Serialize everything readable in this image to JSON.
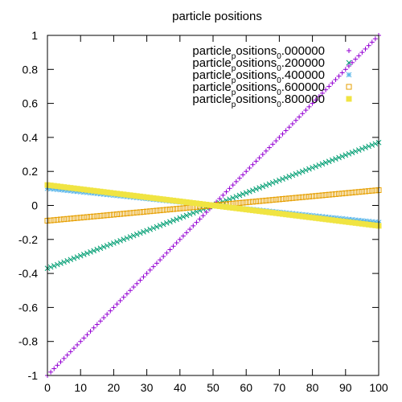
{
  "chart_data": {
    "type": "scatter",
    "title": "particle positions",
    "xlabel": "",
    "ylabel": "",
    "xlim": [
      0,
      100
    ],
    "ylim": [
      -1,
      1
    ],
    "xticks": [
      0,
      10,
      20,
      30,
      40,
      50,
      60,
      70,
      80,
      90,
      100
    ],
    "yticks": [
      -1,
      -0.8,
      -0.6,
      -0.4,
      -0.2,
      0,
      0.2,
      0.4,
      0.6,
      0.8,
      1
    ],
    "xtick_labels": [
      "0",
      "10",
      "20",
      "30",
      "40",
      "50",
      "60",
      "70",
      "80",
      "90",
      "100"
    ],
    "ytick_labels": [
      "-1",
      "-0.8",
      "-0.6",
      "-0.4",
      "-0.2",
      "0",
      "0.2",
      "0.4",
      "0.6",
      "0.8",
      "1"
    ],
    "grid": false,
    "legend_position": "top-right",
    "series": [
      {
        "name": "particle_positions_0.000000",
        "legend_main": "particle",
        "legend_sub1": "p",
        "legend_mid": "ositions",
        "legend_sub2": "0",
        "legend_tail": ".000000",
        "marker": "plus",
        "color": "#9400d3",
        "x_start": 0,
        "x_end": 100,
        "x_step": 1,
        "y_at_x_start": -1.0,
        "y_at_x_end": 1.0
      },
      {
        "name": "particle_positions_0.200000",
        "legend_main": "particle",
        "legend_sub1": "p",
        "legend_mid": "ositions",
        "legend_sub2": "0",
        "legend_tail": ".200000",
        "marker": "cross",
        "color": "#009e73",
        "x_start": 0,
        "x_end": 100,
        "x_step": 1,
        "y_at_x_start": -0.37,
        "y_at_x_end": 0.37
      },
      {
        "name": "particle_positions_0.400000",
        "legend_main": "particle",
        "legend_sub1": "p",
        "legend_mid": "ositions",
        "legend_sub2": "0",
        "legend_tail": ".400000",
        "marker": "star",
        "color": "#56b4e9",
        "x_start": 0,
        "x_end": 100,
        "x_step": 1,
        "y_at_x_start": 0.1,
        "y_at_x_end": -0.1
      },
      {
        "name": "particle_positions_0.600000",
        "legend_main": "particle",
        "legend_sub1": "p",
        "legend_mid": "ositions",
        "legend_sub2": "0",
        "legend_tail": ".600000",
        "marker": "open-square",
        "color": "#e69f00",
        "x_start": 0,
        "x_end": 100,
        "x_step": 1,
        "y_at_x_start": -0.09,
        "y_at_x_end": 0.09
      },
      {
        "name": "particle_positions_0.800000",
        "legend_main": "particle",
        "legend_sub1": "p",
        "legend_mid": "ositions",
        "legend_sub2": "0",
        "legend_tail": ".800000",
        "marker": "filled-square",
        "color": "#f0e442",
        "x_start": 0,
        "x_end": 100,
        "x_step": 1,
        "y_at_x_start": 0.12,
        "y_at_x_end": -0.12
      }
    ]
  }
}
